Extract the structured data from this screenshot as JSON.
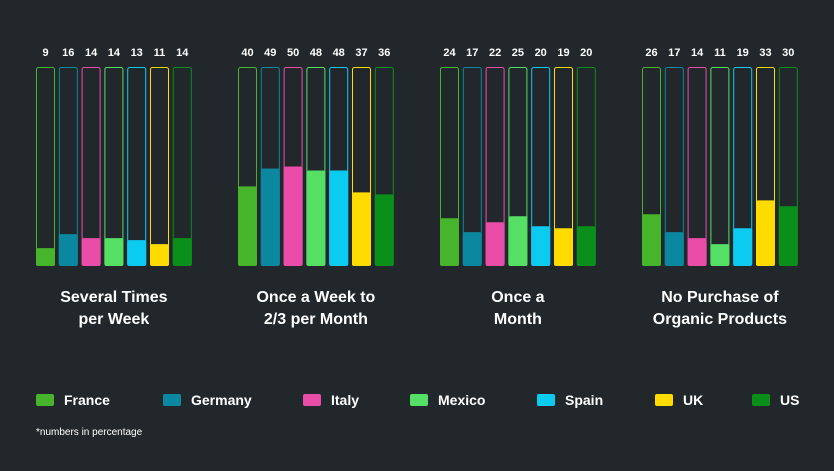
{
  "chart_data": {
    "type": "bar",
    "value_max": 100,
    "series_colors": {
      "France": "#47b52b",
      "Germany": "#0b87a0",
      "Italy": "#e94da8",
      "Mexico": "#55e065",
      "Spain": "#0ccbf0",
      "UK": "#ffdb00",
      "US": "#0a8f1a"
    },
    "series_names": [
      "France",
      "Germany",
      "Italy",
      "Mexico",
      "Spain",
      "UK",
      "US"
    ],
    "groups": [
      {
        "label_lines": [
          "Several Times",
          "per Week"
        ],
        "values": [
          9,
          16,
          14,
          14,
          13,
          11,
          14
        ]
      },
      {
        "label_lines": [
          "Once a Week to",
          "2/3 per Month"
        ],
        "values": [
          40,
          49,
          50,
          48,
          48,
          37,
          36
        ]
      },
      {
        "label_lines": [
          "Once a",
          "Month"
        ],
        "values": [
          24,
          17,
          22,
          25,
          20,
          19,
          20
        ]
      },
      {
        "label_lines": [
          "No Purchase of",
          "Organic Products"
        ],
        "values": [
          26,
          17,
          14,
          11,
          19,
          33,
          30
        ]
      }
    ],
    "footnote": "*numbers in percentage"
  }
}
